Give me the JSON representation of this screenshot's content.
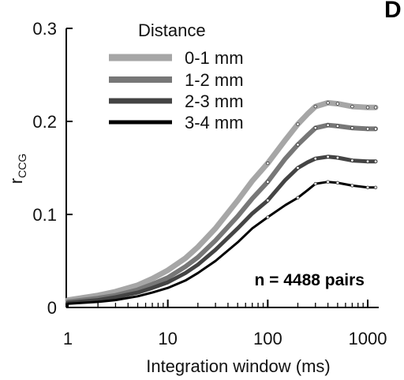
{
  "panel_letter": "D",
  "chart_data": {
    "type": "line",
    "xlabel": "Integration window (ms)",
    "ylabel_main": "r",
    "ylabel_sub": "CCG",
    "x_scale": "log",
    "xlim": [
      1,
      1200
    ],
    "ylim": [
      0,
      0.3
    ],
    "x_ticks": [
      {
        "value": 1,
        "label": "1"
      },
      {
        "value": 10,
        "label": "10"
      },
      {
        "value": 100,
        "label": "100"
      },
      {
        "value": 1000,
        "label": "1000"
      }
    ],
    "y_ticks": [
      {
        "value": 0,
        "label": "0"
      },
      {
        "value": 0.1,
        "label": "0.1"
      },
      {
        "value": 0.2,
        "label": "0.2"
      },
      {
        "value": 0.3,
        "label": "0.3"
      }
    ],
    "legend_title": "Distance",
    "legend_position": "top-left",
    "annotation": "n = 4488 pairs",
    "series": [
      {
        "name": "0-1 mm",
        "color": "#a6a6a6",
        "width": 7,
        "x": [
          1,
          2,
          3,
          5,
          7,
          10,
          15,
          20,
          30,
          50,
          70,
          100,
          150,
          200,
          250,
          300,
          400,
          500,
          700,
          1000,
          1200
        ],
        "y": [
          0.008,
          0.013,
          0.017,
          0.024,
          0.031,
          0.04,
          0.053,
          0.065,
          0.085,
          0.115,
          0.136,
          0.155,
          0.18,
          0.197,
          0.208,
          0.216,
          0.22,
          0.219,
          0.216,
          0.215,
          0.215
        ]
      },
      {
        "name": "1-2 mm",
        "color": "#777777",
        "width": 6,
        "x": [
          1,
          2,
          3,
          5,
          7,
          10,
          15,
          20,
          30,
          50,
          70,
          100,
          150,
          200,
          250,
          300,
          400,
          500,
          700,
          1000,
          1200
        ],
        "y": [
          0.006,
          0.01,
          0.013,
          0.019,
          0.025,
          0.032,
          0.044,
          0.054,
          0.072,
          0.098,
          0.117,
          0.135,
          0.16,
          0.175,
          0.185,
          0.193,
          0.196,
          0.195,
          0.193,
          0.192,
          0.192
        ]
      },
      {
        "name": "2-3 mm",
        "color": "#444444",
        "width": 5,
        "x": [
          1,
          2,
          3,
          5,
          7,
          10,
          15,
          20,
          30,
          50,
          70,
          100,
          150,
          200,
          250,
          300,
          400,
          500,
          700,
          1000,
          1200
        ],
        "y": [
          0.005,
          0.008,
          0.011,
          0.016,
          0.021,
          0.027,
          0.037,
          0.046,
          0.062,
          0.085,
          0.101,
          0.115,
          0.137,
          0.15,
          0.156,
          0.16,
          0.162,
          0.161,
          0.158,
          0.157,
          0.157
        ]
      },
      {
        "name": "3-4 mm",
        "color": "#000000",
        "width": 3,
        "x": [
          1,
          2,
          3,
          5,
          7,
          10,
          15,
          20,
          30,
          50,
          70,
          100,
          150,
          200,
          250,
          300,
          400,
          500,
          700,
          1000,
          1200
        ],
        "y": [
          0.004,
          0.006,
          0.008,
          0.012,
          0.016,
          0.021,
          0.029,
          0.037,
          0.05,
          0.07,
          0.085,
          0.097,
          0.11,
          0.118,
          0.126,
          0.133,
          0.135,
          0.134,
          0.131,
          0.129,
          0.129
        ]
      }
    ]
  }
}
